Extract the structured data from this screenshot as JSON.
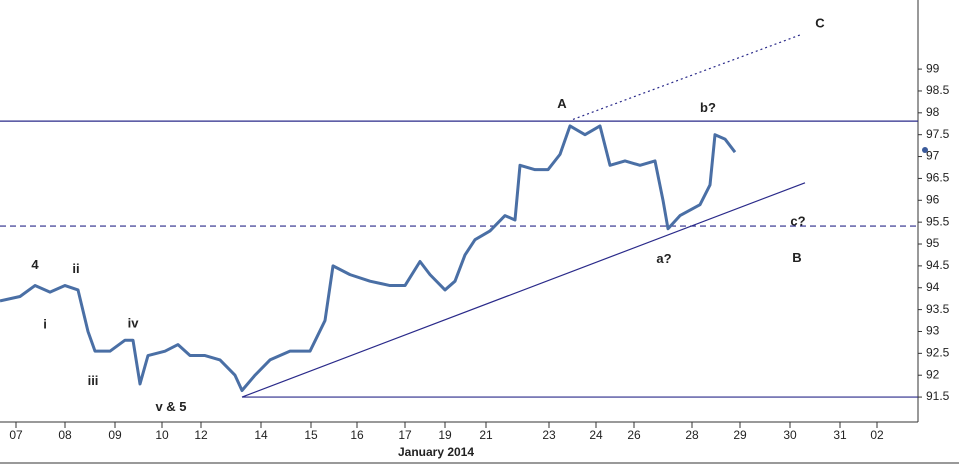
{
  "chart_data": {
    "type": "line",
    "x_label": "January 2014",
    "xlim": [
      0,
      18.4
    ],
    "xticks": [
      {
        "value": 0.32,
        "label": "07"
      },
      {
        "value": 1.3,
        "label": "08"
      },
      {
        "value": 2.3,
        "label": "09"
      },
      {
        "value": 3.24,
        "label": "10"
      },
      {
        "value": 4.02,
        "label": "12"
      },
      {
        "value": 5.22,
        "label": "14"
      },
      {
        "value": 6.22,
        "label": "15"
      },
      {
        "value": 7.14,
        "label": "16"
      },
      {
        "value": 8.1,
        "label": "17"
      },
      {
        "value": 8.9,
        "label": "19"
      },
      {
        "value": 9.72,
        "label": "21"
      },
      {
        "value": 10.98,
        "label": "23"
      },
      {
        "value": 11.92,
        "label": "24"
      },
      {
        "value": 12.68,
        "label": "26"
      },
      {
        "value": 13.84,
        "label": "28"
      },
      {
        "value": 14.8,
        "label": "29"
      },
      {
        "value": 15.8,
        "label": "30"
      },
      {
        "value": 16.8,
        "label": "31"
      },
      {
        "value": 17.54,
        "label": "02"
      }
    ],
    "ylim": [
      90.93,
      100.58
    ],
    "yticks": [
      91.5,
      92,
      92.5,
      93,
      93.5,
      94,
      94.5,
      95,
      95.5,
      96,
      96.5,
      97,
      97.5,
      98,
      98.5,
      99
    ],
    "x": [
      0,
      0.4,
      0.7,
      1.0,
      1.3,
      1.56,
      1.76,
      1.9,
      2.2,
      2.5,
      2.66,
      2.8,
      2.96,
      3.3,
      3.56,
      3.8,
      4.1,
      4.4,
      4.7,
      4.84,
      5.1,
      5.4,
      5.8,
      6.2,
      6.5,
      6.66,
      7.0,
      7.4,
      7.8,
      8.1,
      8.4,
      8.6,
      8.9,
      9.1,
      9.3,
      9.5,
      9.8,
      10.1,
      10.3,
      10.4,
      10.7,
      10.96,
      11.2,
      11.4,
      11.7,
      12.0,
      12.2,
      12.5,
      12.8,
      13.1,
      13.26,
      13.36,
      13.6,
      14.0,
      14.2,
      14.3,
      14.5,
      14.7
    ],
    "series": [
      {
        "name": "Price",
        "color": "#4a6fa5",
        "values": [
          93.7,
          93.8,
          94.05,
          93.9,
          94.05,
          93.95,
          93.0,
          92.55,
          92.55,
          92.8,
          92.8,
          91.8,
          92.45,
          92.55,
          92.7,
          92.45,
          92.45,
          92.35,
          92.0,
          91.65,
          92.0,
          92.35,
          92.55,
          92.55,
          93.25,
          94.5,
          94.3,
          94.15,
          94.05,
          94.05,
          94.6,
          94.3,
          93.95,
          94.15,
          94.75,
          95.1,
          95.3,
          95.65,
          95.55,
          96.8,
          96.7,
          96.7,
          97.05,
          97.7,
          97.5,
          97.7,
          96.8,
          96.9,
          96.8,
          96.9,
          96.0,
          95.35,
          95.65,
          95.9,
          96.35,
          97.5,
          97.4,
          97.1
        ]
      }
    ],
    "lines": [
      {
        "x": [
          0,
          18.36
        ],
        "y": [
          97.81,
          97.81
        ],
        "style": "solid",
        "color": "#2a2a8a"
      },
      {
        "x": [
          0,
          18.36
        ],
        "y": [
          95.41,
          95.41
        ],
        "style": "dashed",
        "color": "#2a2a8a"
      },
      {
        "x": [
          4.84,
          18.36
        ],
        "y": [
          91.5,
          91.5
        ],
        "style": "solid",
        "color": "#2a2a8a"
      },
      {
        "x": [
          4.84,
          16.1
        ],
        "y": [
          91.5,
          96.4
        ],
        "style": "solid",
        "color": "#2a2a8a"
      },
      {
        "x": [
          11.46,
          16.0
        ],
        "y": [
          97.85,
          99.78
        ],
        "style": "dotted",
        "color": "#2a2a8a"
      }
    ],
    "annotations": [
      {
        "text": "4",
        "x": 0.7,
        "y": 94.51
      },
      {
        "text": "ii",
        "x": 1.52,
        "y": 94.42
      },
      {
        "text": "i",
        "x": 0.9,
        "y": 93.15
      },
      {
        "text": "iv",
        "x": 2.66,
        "y": 93.17
      },
      {
        "text": "iii",
        "x": 1.86,
        "y": 91.85
      },
      {
        "text": "v & 5",
        "x": 3.42,
        "y": 91.26
      },
      {
        "text": "A",
        "x": 11.24,
        "y": 98.19
      },
      {
        "text": "b?",
        "x": 14.16,
        "y": 98.1
      },
      {
        "text": "C",
        "x": 16.4,
        "y": 100.03
      },
      {
        "text": "c?",
        "x": 15.96,
        "y": 95.5
      },
      {
        "text": "B",
        "x": 15.94,
        "y": 94.67
      },
      {
        "text": "a?",
        "x": 13.28,
        "y": 94.65
      }
    ]
  }
}
